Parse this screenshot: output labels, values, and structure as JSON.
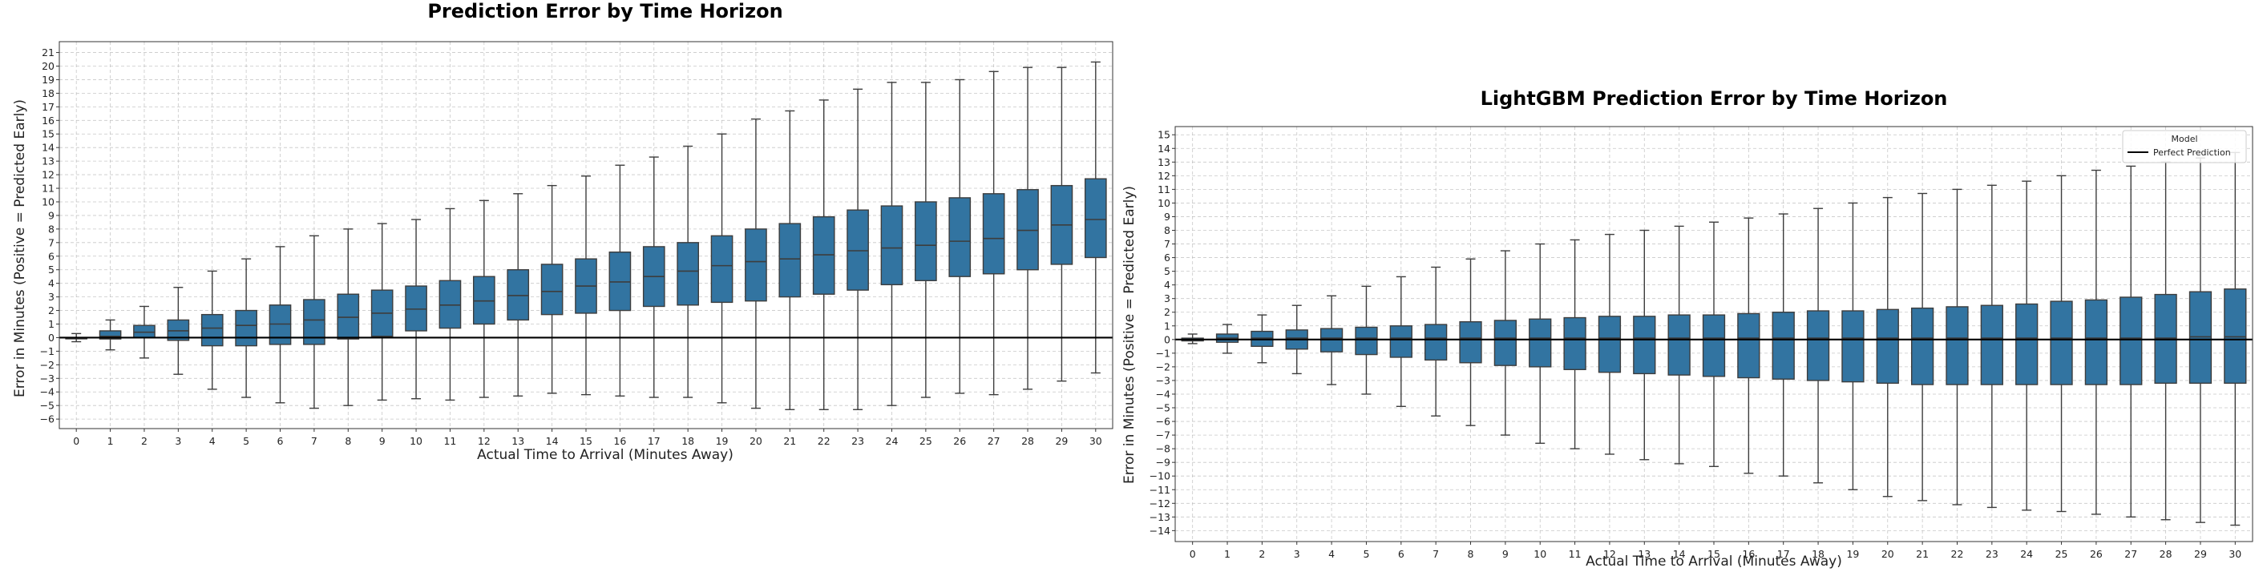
{
  "chart_data": [
    {
      "type": "box",
      "title": "Prediction Error by Time Horizon",
      "xlabel": "Actual Time to Arrival (Minutes Away)",
      "ylabel": "Error in Minutes (Positive = Predicted Early)",
      "ylim": [
        -6.7,
        21.8
      ],
      "yticks": [
        -6,
        -5,
        -4,
        -3,
        -2,
        -1,
        0,
        1,
        2,
        3,
        4,
        5,
        6,
        7,
        8,
        9,
        10,
        11,
        12,
        13,
        14,
        15,
        16,
        17,
        18,
        19,
        20,
        21
      ],
      "grid": true,
      "reference_line_y": 0,
      "box_color": "#3274a1",
      "categories": [
        "0",
        "1",
        "2",
        "3",
        "4",
        "5",
        "6",
        "7",
        "8",
        "9",
        "10",
        "11",
        "12",
        "13",
        "14",
        "15",
        "16",
        "17",
        "18",
        "19",
        "20",
        "21",
        "22",
        "23",
        "24",
        "25",
        "26",
        "27",
        "28",
        "29",
        "30"
      ],
      "boxes": [
        {
          "whislo": -0.3,
          "q1": 0,
          "med": 0,
          "q3": 0,
          "whishi": 0.3
        },
        {
          "whislo": -0.9,
          "q1": -0.1,
          "med": 0.1,
          "q3": 0.5,
          "whishi": 1.3
        },
        {
          "whislo": -1.5,
          "q1": 0,
          "med": 0.4,
          "q3": 0.9,
          "whishi": 2.3
        },
        {
          "whislo": -2.7,
          "q1": -0.2,
          "med": 0.5,
          "q3": 1.3,
          "whishi": 3.7
        },
        {
          "whislo": -3.8,
          "q1": -0.6,
          "med": 0.7,
          "q3": 1.7,
          "whishi": 4.9
        },
        {
          "whislo": -4.4,
          "q1": -0.6,
          "med": 0.9,
          "q3": 2.0,
          "whishi": 5.8
        },
        {
          "whislo": -4.8,
          "q1": -0.5,
          "med": 1.0,
          "q3": 2.4,
          "whishi": 6.7
        },
        {
          "whislo": -5.2,
          "q1": -0.5,
          "med": 1.3,
          "q3": 2.8,
          "whishi": 7.5
        },
        {
          "whislo": -5.0,
          "q1": -0.1,
          "med": 1.5,
          "q3": 3.2,
          "whishi": 8.0
        },
        {
          "whislo": -4.6,
          "q1": 0.1,
          "med": 1.8,
          "q3": 3.5,
          "whishi": 8.4
        },
        {
          "whislo": -4.5,
          "q1": 0.5,
          "med": 2.1,
          "q3": 3.8,
          "whishi": 8.7
        },
        {
          "whislo": -4.6,
          "q1": 0.7,
          "med": 2.4,
          "q3": 4.2,
          "whishi": 9.5
        },
        {
          "whislo": -4.4,
          "q1": 1.0,
          "med": 2.7,
          "q3": 4.5,
          "whishi": 10.1
        },
        {
          "whislo": -4.3,
          "q1": 1.3,
          "med": 3.1,
          "q3": 5.0,
          "whishi": 10.6
        },
        {
          "whislo": -4.1,
          "q1": 1.7,
          "med": 3.4,
          "q3": 5.4,
          "whishi": 11.2
        },
        {
          "whislo": -4.2,
          "q1": 1.8,
          "med": 3.8,
          "q3": 5.8,
          "whishi": 11.9
        },
        {
          "whislo": -4.3,
          "q1": 2.0,
          "med": 4.1,
          "q3": 6.3,
          "whishi": 12.7
        },
        {
          "whislo": -4.4,
          "q1": 2.3,
          "med": 4.5,
          "q3": 6.7,
          "whishi": 13.3
        },
        {
          "whislo": -4.4,
          "q1": 2.4,
          "med": 4.9,
          "q3": 7.0,
          "whishi": 14.1
        },
        {
          "whislo": -4.8,
          "q1": 2.6,
          "med": 5.3,
          "q3": 7.5,
          "whishi": 15.0
        },
        {
          "whislo": -5.2,
          "q1": 2.7,
          "med": 5.6,
          "q3": 8.0,
          "whishi": 16.1
        },
        {
          "whislo": -5.3,
          "q1": 3.0,
          "med": 5.8,
          "q3": 8.4,
          "whishi": 16.7
        },
        {
          "whislo": -5.3,
          "q1": 3.2,
          "med": 6.1,
          "q3": 8.9,
          "whishi": 17.5
        },
        {
          "whislo": -5.3,
          "q1": 3.5,
          "med": 6.4,
          "q3": 9.4,
          "whishi": 18.3
        },
        {
          "whislo": -5.0,
          "q1": 3.9,
          "med": 6.6,
          "q3": 9.7,
          "whishi": 18.8
        },
        {
          "whislo": -4.4,
          "q1": 4.2,
          "med": 6.8,
          "q3": 10.0,
          "whishi": 18.8
        },
        {
          "whislo": -4.1,
          "q1": 4.5,
          "med": 7.1,
          "q3": 10.3,
          "whishi": 19.0
        },
        {
          "whislo": -4.2,
          "q1": 4.7,
          "med": 7.3,
          "q3": 10.6,
          "whishi": 19.6
        },
        {
          "whislo": -3.8,
          "q1": 5.0,
          "med": 7.9,
          "q3": 10.9,
          "whishi": 19.9
        },
        {
          "whislo": -3.2,
          "q1": 5.4,
          "med": 8.3,
          "q3": 11.2,
          "whishi": 19.9
        },
        {
          "whislo": -2.6,
          "q1": 5.9,
          "med": 8.7,
          "q3": 11.7,
          "whishi": 20.3
        }
      ]
    },
    {
      "type": "box",
      "title": "LightGBM Prediction Error by Time Horizon",
      "xlabel": "Actual Time to Arrival (Minutes Away)",
      "ylabel": "Error in Minutes (Positive = Predicted Early)",
      "ylim": [
        -14.8,
        15.6
      ],
      "yticks": [
        -14,
        -13,
        -12,
        -11,
        -10,
        -9,
        -8,
        -7,
        -6,
        -5,
        -4,
        -3,
        -2,
        -1,
        0,
        1,
        2,
        3,
        4,
        5,
        6,
        7,
        8,
        9,
        10,
        11,
        12,
        13,
        14,
        15
      ],
      "grid": true,
      "reference_line_y": 0,
      "box_color": "#3274a1",
      "legend": {
        "title": "Model",
        "entries": [
          "Perfect Prediction"
        ],
        "placement": "top-right"
      },
      "categories": [
        "0",
        "1",
        "2",
        "3",
        "4",
        "5",
        "6",
        "7",
        "8",
        "9",
        "10",
        "11",
        "12",
        "13",
        "14",
        "15",
        "16",
        "17",
        "18",
        "19",
        "20",
        "21",
        "22",
        "23",
        "24",
        "25",
        "26",
        "27",
        "28",
        "29",
        "30"
      ],
      "boxes": [
        {
          "whislo": -0.3,
          "q1": -0.1,
          "med": 0,
          "q3": 0.1,
          "whishi": 0.4
        },
        {
          "whislo": -1.0,
          "q1": -0.2,
          "med": 0.1,
          "q3": 0.4,
          "whishi": 1.1
        },
        {
          "whislo": -1.7,
          "q1": -0.5,
          "med": 0.1,
          "q3": 0.6,
          "whishi": 1.8
        },
        {
          "whislo": -2.5,
          "q1": -0.7,
          "med": 0.1,
          "q3": 0.7,
          "whishi": 2.5
        },
        {
          "whislo": -3.3,
          "q1": -0.9,
          "med": 0.1,
          "q3": 0.8,
          "whishi": 3.2
        },
        {
          "whislo": -4.0,
          "q1": -1.1,
          "med": 0.1,
          "q3": 0.9,
          "whishi": 3.9
        },
        {
          "whislo": -4.9,
          "q1": -1.3,
          "med": 0.1,
          "q3": 1.0,
          "whishi": 4.6
        },
        {
          "whislo": -5.6,
          "q1": -1.5,
          "med": 0.1,
          "q3": 1.1,
          "whishi": 5.3
        },
        {
          "whislo": -6.3,
          "q1": -1.7,
          "med": 0.1,
          "q3": 1.3,
          "whishi": 5.9
        },
        {
          "whislo": -7.0,
          "q1": -1.9,
          "med": 0.1,
          "q3": 1.4,
          "whishi": 6.5
        },
        {
          "whislo": -7.6,
          "q1": -2.0,
          "med": 0.1,
          "q3": 1.5,
          "whishi": 7.0
        },
        {
          "whislo": -8.0,
          "q1": -2.2,
          "med": 0.1,
          "q3": 1.6,
          "whishi": 7.3
        },
        {
          "whislo": -8.4,
          "q1": -2.4,
          "med": 0.1,
          "q3": 1.7,
          "whishi": 7.7
        },
        {
          "whislo": -8.8,
          "q1": -2.5,
          "med": 0.1,
          "q3": 1.7,
          "whishi": 8.0
        },
        {
          "whislo": -9.1,
          "q1": -2.6,
          "med": 0.1,
          "q3": 1.8,
          "whishi": 8.3
        },
        {
          "whislo": -9.3,
          "q1": -2.7,
          "med": 0.1,
          "q3": 1.8,
          "whishi": 8.6
        },
        {
          "whislo": -9.8,
          "q1": -2.8,
          "med": 0.1,
          "q3": 1.9,
          "whishi": 8.9
        },
        {
          "whislo": -10.0,
          "q1": -2.9,
          "med": 0.1,
          "q3": 2.0,
          "whishi": 9.2
        },
        {
          "whislo": -10.5,
          "q1": -3.0,
          "med": 0.1,
          "q3": 2.1,
          "whishi": 9.6
        },
        {
          "whislo": -11.0,
          "q1": -3.1,
          "med": 0.1,
          "q3": 2.1,
          "whishi": 10.0
        },
        {
          "whislo": -11.5,
          "q1": -3.2,
          "med": 0.1,
          "q3": 2.2,
          "whishi": 10.4
        },
        {
          "whislo": -11.8,
          "q1": -3.3,
          "med": 0.1,
          "q3": 2.3,
          "whishi": 10.7
        },
        {
          "whislo": -12.1,
          "q1": -3.3,
          "med": 0.1,
          "q3": 2.4,
          "whishi": 11.0
        },
        {
          "whislo": -12.3,
          "q1": -3.3,
          "med": 0.1,
          "q3": 2.5,
          "whishi": 11.3
        },
        {
          "whislo": -12.5,
          "q1": -3.3,
          "med": 0.1,
          "q3": 2.6,
          "whishi": 11.6
        },
        {
          "whislo": -12.6,
          "q1": -3.3,
          "med": 0.1,
          "q3": 2.8,
          "whishi": 12.0
        },
        {
          "whislo": -12.8,
          "q1": -3.3,
          "med": 0.1,
          "q3": 2.9,
          "whishi": 12.4
        },
        {
          "whislo": -13.0,
          "q1": -3.3,
          "med": 0.1,
          "q3": 3.1,
          "whishi": 12.7
        },
        {
          "whislo": -13.2,
          "q1": -3.2,
          "med": 0.1,
          "q3": 3.3,
          "whishi": 13.0
        },
        {
          "whislo": -13.4,
          "q1": -3.2,
          "med": 0.2,
          "q3": 3.5,
          "whishi": 13.3
        },
        {
          "whislo": -13.6,
          "q1": -3.2,
          "med": 0.2,
          "q3": 3.7,
          "whishi": 13.7
        }
      ]
    }
  ]
}
